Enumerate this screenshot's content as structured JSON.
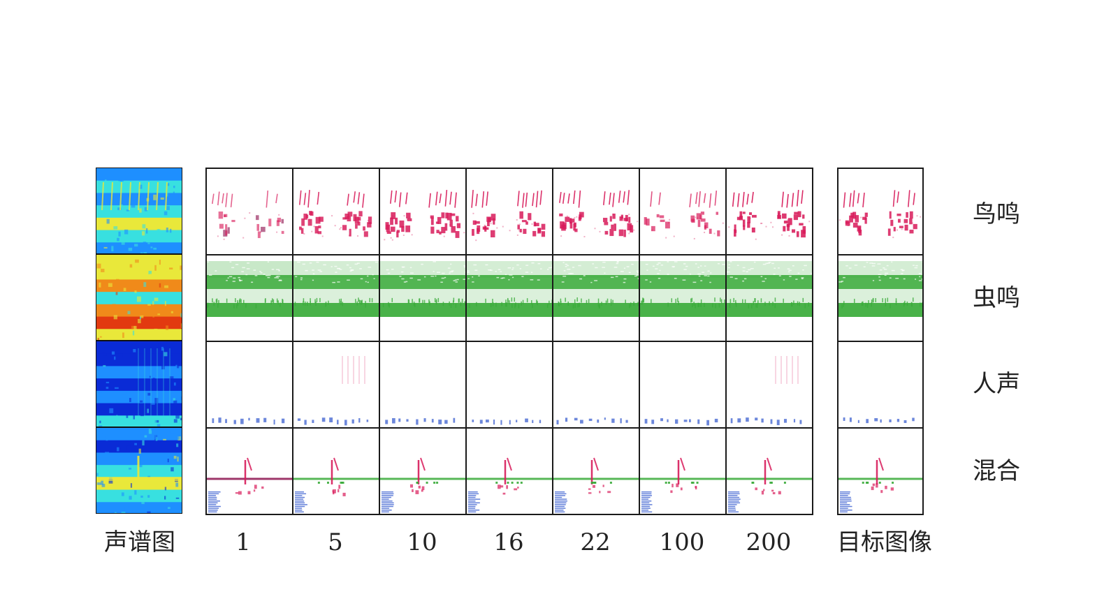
{
  "left_column_label": "声谱图",
  "iteration_labels": [
    "1",
    "5",
    "10",
    "16",
    "22",
    "100",
    "200"
  ],
  "target_column_label": "目标图像",
  "row_labels": [
    "鸟鸣",
    "虫鸣",
    "人声",
    "混合"
  ],
  "colors": {
    "bird": "#d81b5a",
    "bird_dark": "#8e1450",
    "insect": "#3aab3a",
    "voice": "#3b5fcf",
    "spec_deep": "#0a2bd6",
    "spec_mid": "#1e8fff",
    "spec_cyan": "#38e0e0",
    "spec_yellow": "#e9e83a",
    "spec_orange": "#f08a1a",
    "spec_red": "#e23a10"
  }
}
